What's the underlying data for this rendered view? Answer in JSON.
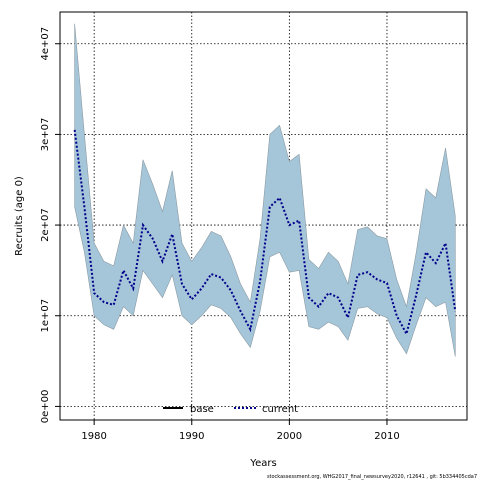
{
  "chart_data": {
    "type": "area",
    "xlabel": "Years",
    "ylabel": "Recruits (age 0)",
    "xlim": [
      1976.5,
      2018.2
    ],
    "ylim": [
      -1500000,
      43500000
    ],
    "xticks": [
      1980,
      1990,
      2000,
      2010
    ],
    "xtick_labels": [
      "1980",
      "1990",
      "2000",
      "2010"
    ],
    "yticks": [
      0,
      10000000,
      20000000,
      30000000,
      40000000
    ],
    "ytick_labels": [
      "0e+00",
      "1e+07",
      "2e+07",
      "3e+07",
      "4e+07"
    ],
    "grid": true,
    "legend_position": "bottom-center",
    "legend": [
      {
        "label": "base",
        "style": "solid",
        "color": "#000000"
      },
      {
        "label": "current",
        "style": "dotted",
        "color": "#00008b"
      }
    ],
    "band_color": "#a5c6d8",
    "band_edge_color": "#8a9aa4",
    "x": [
      1978,
      1979,
      1980,
      1981,
      1982,
      1983,
      1984,
      1985,
      1986,
      1987,
      1988,
      1989,
      1990,
      1991,
      1992,
      1993,
      1994,
      1995,
      1996,
      1997,
      1998,
      1999,
      2000,
      2001,
      2002,
      2003,
      2004,
      2005,
      2006,
      2007,
      2008,
      2009,
      2010,
      2011,
      2012,
      2013,
      2014,
      2015,
      2016,
      2017
    ],
    "upper": [
      42200000,
      30000000,
      18000000,
      16000000,
      15500000,
      20000000,
      18000000,
      27200000,
      24500000,
      21500000,
      26000000,
      18000000,
      16000000,
      17500000,
      19300000,
      18800000,
      16500000,
      13500000,
      11500000,
      18500000,
      30000000,
      31000000,
      27000000,
      27800000,
      16200000,
      15200000,
      17000000,
      16000000,
      13500000,
      19500000,
      19800000,
      18800000,
      18500000,
      14000000,
      11000000,
      17000000,
      24000000,
      23000000,
      28500000,
      21000000
    ],
    "current": [
      30500000,
      22000000,
      12500000,
      11500000,
      11200000,
      15000000,
      13000000,
      20000000,
      18500000,
      16000000,
      19000000,
      13500000,
      11800000,
      13000000,
      14600000,
      14200000,
      12800000,
      10500000,
      8500000,
      13800000,
      22000000,
      23000000,
      20000000,
      20500000,
      12000000,
      11000000,
      12500000,
      12000000,
      9800000,
      14500000,
      14800000,
      14000000,
      13600000,
      10000000,
      8000000,
      12300000,
      17000000,
      15800000,
      18000000,
      10500000
    ],
    "lower": [
      22000000,
      17000000,
      10000000,
      9000000,
      8500000,
      11000000,
      10000000,
      15000000,
      13500000,
      12000000,
      14500000,
      10000000,
      9000000,
      10000000,
      11200000,
      10800000,
      9800000,
      8000000,
      6500000,
      10500000,
      16500000,
      17000000,
      14800000,
      15000000,
      8800000,
      8500000,
      9300000,
      8800000,
      7300000,
      10800000,
      11000000,
      10200000,
      9800000,
      7500000,
      5800000,
      9000000,
      12000000,
      11000000,
      11500000,
      5500000
    ],
    "footnote": "stockassessment.org, WHG2017_final_newsurvey2020, r12641 , git: 5b334405cda7"
  }
}
